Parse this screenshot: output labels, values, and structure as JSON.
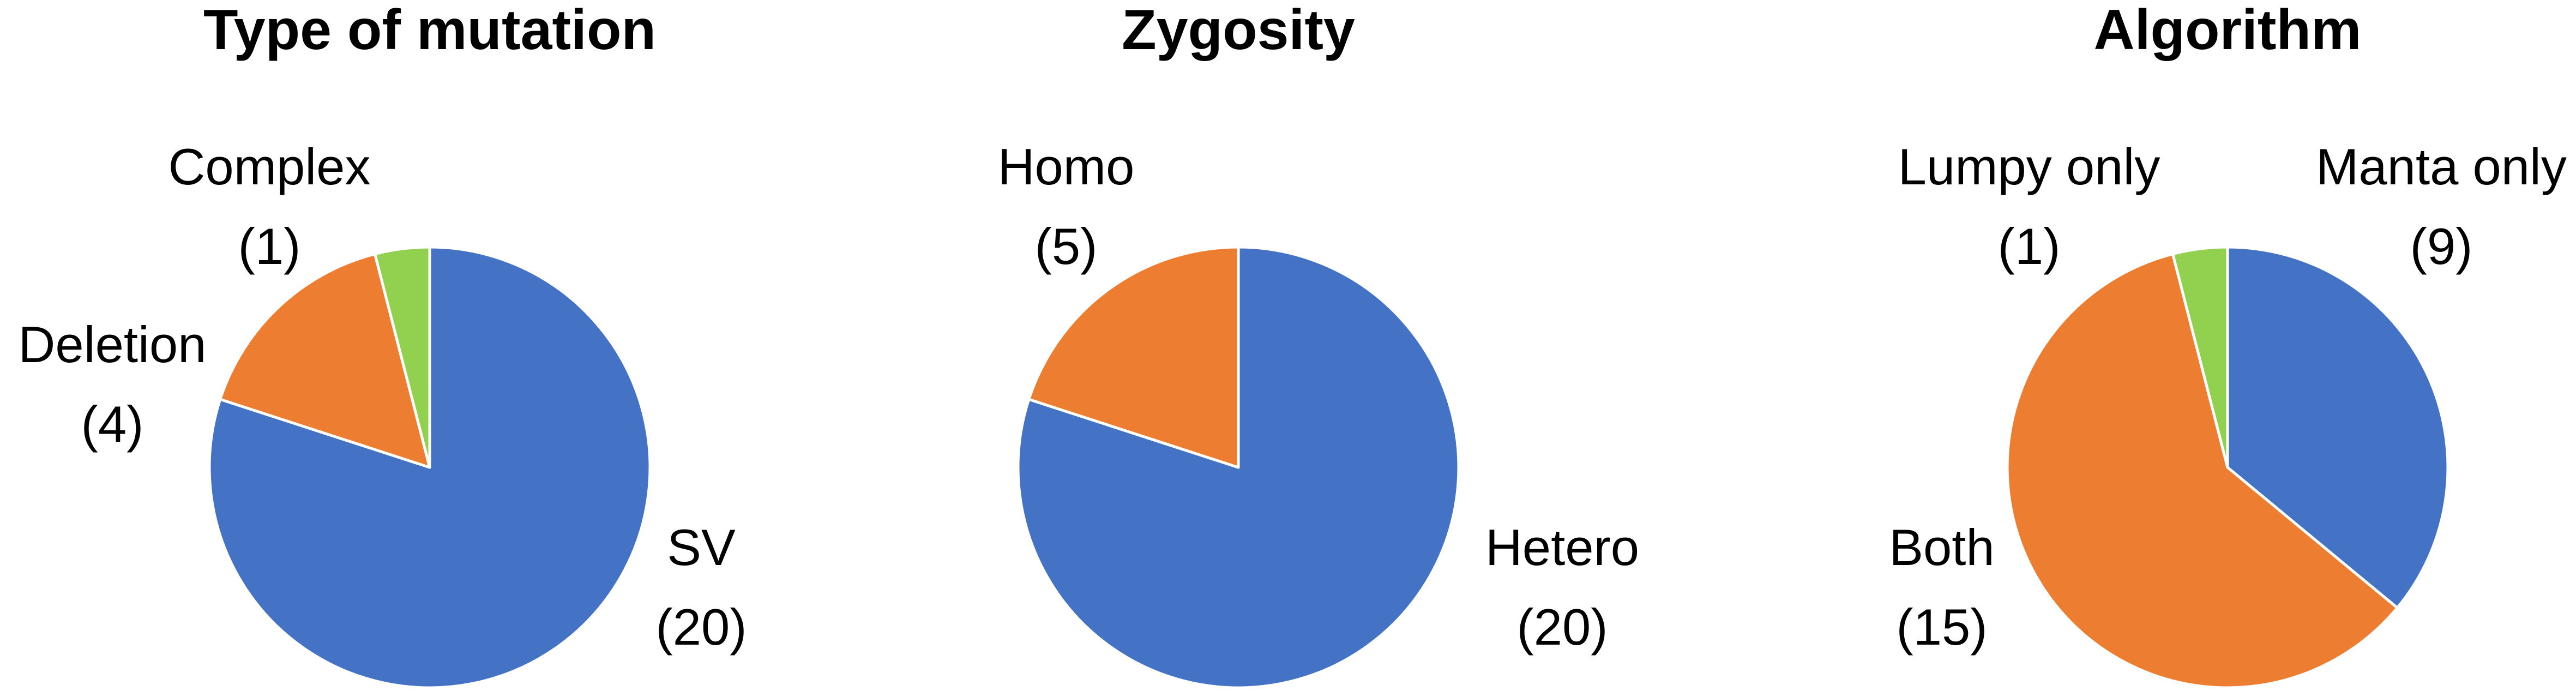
{
  "chart_data": [
    {
      "type": "pie",
      "title": "Type of mutation",
      "start_angle_deg": 0,
      "direction": "clockwise",
      "slices": [
        {
          "label": "SV",
          "value": 20,
          "value_text": "(20)",
          "color": "#4472C4"
        },
        {
          "label": "Deletion",
          "value": 4,
          "value_text": "(4)",
          "color": "#ED7D31"
        },
        {
          "label": "Complex",
          "value": 1,
          "value_text": "(1)",
          "color": "#92D050"
        }
      ]
    },
    {
      "type": "pie",
      "title": "Zygosity",
      "start_angle_deg": 0,
      "direction": "clockwise",
      "slices": [
        {
          "label": "Hetero",
          "value": 20,
          "value_text": "(20)",
          "color": "#4472C4"
        },
        {
          "label": "Homo",
          "value": 5,
          "value_text": "(5)",
          "color": "#ED7D31"
        }
      ]
    },
    {
      "type": "pie",
      "title": "Algorithm",
      "start_angle_deg": 0,
      "direction": "clockwise",
      "slices": [
        {
          "label": "Manta only",
          "value": 9,
          "value_text": "(9)",
          "color": "#4472C4"
        },
        {
          "label": "Both",
          "value": 15,
          "value_text": "(15)",
          "color": "#ED7D31"
        },
        {
          "label": "Lumpy only",
          "value": 1,
          "value_text": "(1)",
          "color": "#92D050"
        }
      ]
    }
  ]
}
